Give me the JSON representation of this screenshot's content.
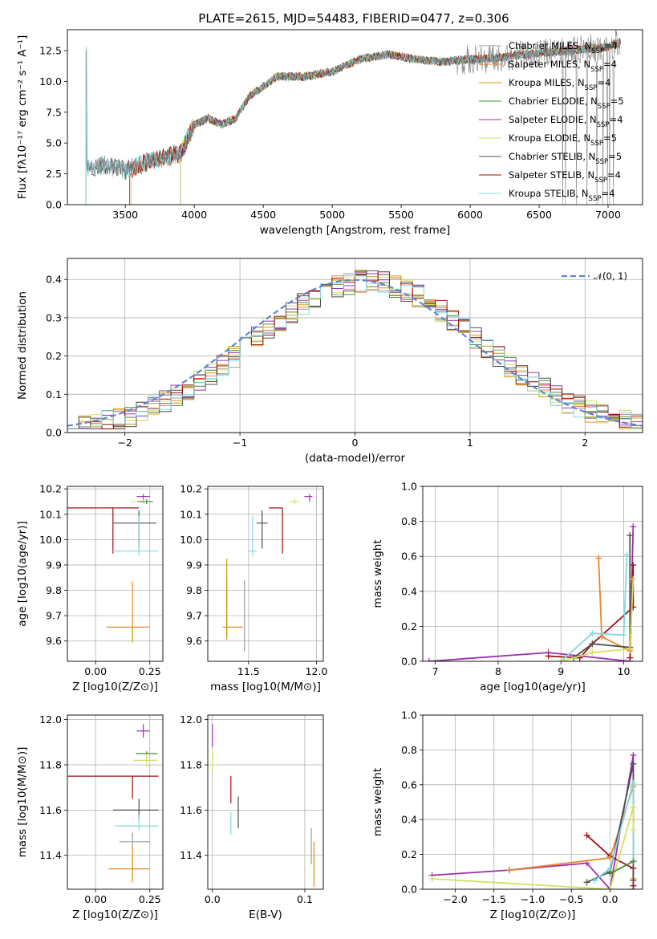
{
  "title": "PLATE=2615, MJD=54483, FIBERID=0477, z=0.306",
  "colors": {
    "chabrier_miles": "#9b9b9b",
    "salpeter_miles": "#e8872c",
    "kroupa_miles": "#c8a000",
    "chabrier_elodie": "#4a8a3a",
    "salpeter_elodie": "#9b30b0",
    "kroupa_elodie": "#d4e060",
    "chabrier_stelib": "#505050",
    "salpeter_stelib": "#a01010",
    "kroupa_stelib": "#80d8e0",
    "normal": "#5b87d4"
  },
  "legend_items": [
    {
      "label": "Chabrier MILES, N",
      "sub": "SSP",
      "tail": "=4",
      "color_key": "chabrier_miles"
    },
    {
      "label": "Salpeter MILES, N",
      "sub": "SSP",
      "tail": "=4",
      "color_key": "salpeter_miles"
    },
    {
      "label": "Kroupa MILES, N",
      "sub": "SSP",
      "tail": "=4",
      "color_key": "kroupa_miles"
    },
    {
      "label": "Chabrier ELODIE, N",
      "sub": "SSP",
      "tail": "=5",
      "color_key": "chabrier_elodie"
    },
    {
      "label": "Salpeter ELODIE, N",
      "sub": "SSP",
      "tail": "=4",
      "color_key": "salpeter_elodie"
    },
    {
      "label": "Kroupa ELODIE, N",
      "sub": "SSP",
      "tail": "=5",
      "color_key": "kroupa_elodie"
    },
    {
      "label": "Chabrier STELIB, N",
      "sub": "SSP",
      "tail": "=5",
      "color_key": "chabrier_stelib"
    },
    {
      "label": "Salpeter STELIB, N",
      "sub": "SSP",
      "tail": "=4",
      "color_key": "salpeter_stelib"
    },
    {
      "label": "Kroupa STELIB, N",
      "sub": "SSP",
      "tail": "=4",
      "color_key": "kroupa_stelib"
    }
  ],
  "chart_data": [
    {
      "id": "spectrum",
      "type": "line",
      "xlabel": "wavelength [Angstrom, rest frame]",
      "ylabel": "Flux [fλ10⁻¹⁷ erg cm⁻² s⁻¹ A⁻¹]",
      "xlim": [
        3080,
        7250
      ],
      "ylim": [
        0,
        14.2
      ],
      "xticks": [
        3500,
        4000,
        4500,
        5000,
        5500,
        6000,
        6500,
        7000
      ],
      "yticks": [
        0.0,
        2.5,
        5.0,
        7.5,
        10.0,
        12.5
      ],
      "continuum_x": [
        3220,
        3350,
        3500,
        3700,
        3900,
        4000,
        4100,
        4200,
        4300,
        4400,
        4600,
        4800,
        5000,
        5200,
        5400,
        5600,
        5800,
        6000,
        6200,
        6400,
        6600,
        6800,
        7000,
        7100
      ],
      "continuum_y": [
        3.0,
        3.2,
        2.8,
        3.6,
        4.2,
        6.5,
        7.0,
        6.5,
        7.0,
        8.8,
        10.4,
        10.4,
        10.8,
        11.8,
        12.2,
        11.8,
        11.6,
        11.8,
        11.9,
        12.2,
        12.4,
        12.6,
        12.8,
        13.3
      ]
    },
    {
      "id": "residuals",
      "type": "histogram",
      "xlabel": "(data-model)/error",
      "ylabel": "Normed distribution",
      "xlim": [
        -2.5,
        2.5
      ],
      "ylim": [
        0,
        0.455
      ],
      "xticks": [
        -2,
        -1,
        0,
        1,
        2
      ],
      "yticks": [
        0.0,
        0.1,
        0.2,
        0.3,
        0.4
      ],
      "normal_label": "𝒩(0, 1)",
      "bin_width": 0.1,
      "bin_start": -2.5
    },
    {
      "id": "age_vs_Z",
      "type": "errorbar",
      "xlabel": "Z [log10(Z/Z⊙)]",
      "ylabel": "age  [log10(age/yr)]",
      "xlim": [
        -0.13,
        0.31
      ],
      "ylim": [
        9.52,
        10.21
      ],
      "xticks": [
        0.0,
        0.25
      ],
      "yticks": [
        9.6,
        9.7,
        9.8,
        9.9,
        10.0,
        10.1,
        10.2
      ],
      "points": [
        {
          "k": "salpeter_stelib",
          "x": 0.08,
          "xerr": [
            0.21,
            0.12
          ],
          "y": 10.125,
          "yerr": [
            0.18,
            0.0
          ]
        },
        {
          "k": "salpeter_elodie",
          "x": 0.22,
          "xerr": [
            0.03,
            0.03
          ],
          "y": 10.17,
          "yerr": [
            0.02,
            0.01
          ]
        },
        {
          "k": "kroupa_elodie",
          "x": 0.22,
          "xerr": [
            0.06,
            0.04
          ],
          "y": 10.15,
          "yerr": [
            0.01,
            0.01
          ]
        },
        {
          "k": "chabrier_elodie",
          "x": 0.235,
          "xerr": [
            0.04,
            0.03
          ],
          "y": 10.15,
          "yerr": [
            0.01,
            0.01
          ]
        },
        {
          "k": "chabrier_stelib",
          "x": 0.2,
          "xerr": [
            0.12,
            0.08
          ],
          "y": 10.065,
          "yerr": [
            0.1,
            0.05
          ]
        },
        {
          "k": "kroupa_stelib",
          "x": 0.2,
          "xerr": [
            0.12,
            0.09
          ],
          "y": 9.955,
          "yerr": [
            0.02,
            0.14
          ]
        },
        {
          "k": "salpeter_miles",
          "x": 0.17,
          "xerr": [
            0.12,
            0.08
          ],
          "y": 9.655,
          "yerr": [
            0.05,
            0.18
          ]
        },
        {
          "k": "kroupa_miles",
          "x": 0.17,
          "xerr": [
            0.0,
            0.0
          ],
          "y": 9.655,
          "yerr": [
            0.06,
            0.0
          ]
        }
      ]
    },
    {
      "id": "age_vs_mass",
      "type": "errorbar",
      "xlabel": "mass [log10(M/M⊙)]",
      "ylabel": "",
      "xlim": [
        11.2,
        12.05
      ],
      "ylim": [
        9.52,
        10.21
      ],
      "xticks": [
        11.5,
        12.0
      ],
      "yticks": [
        9.6,
        9.7,
        9.8,
        9.9,
        10.0,
        10.1,
        10.2
      ],
      "points": [
        {
          "k": "salpeter_stelib",
          "x": 11.75,
          "xerr": [
            0.1,
            0.0
          ],
          "y": 10.125,
          "yerr": [
            0.18,
            0.0
          ]
        },
        {
          "k": "salpeter_elodie",
          "x": 11.95,
          "xerr": [
            0.04,
            0.02
          ],
          "y": 10.17,
          "yerr": [
            0.02,
            0.01
          ]
        },
        {
          "k": "kroupa_elodie",
          "x": 11.84,
          "xerr": [
            0.04,
            0.03
          ],
          "y": 10.15,
          "yerr": [
            0.01,
            0.01
          ]
        },
        {
          "k": "chabrier_stelib",
          "x": 11.6,
          "xerr": [
            0.04,
            0.04
          ],
          "y": 10.065,
          "yerr": [
            0.1,
            0.05
          ]
        },
        {
          "k": "kroupa_stelib",
          "x": 11.53,
          "xerr": [
            0.03,
            0.03
          ],
          "y": 9.955,
          "yerr": [
            0.02,
            0.14
          ]
        },
        {
          "k": "salpeter_miles",
          "x": 11.34,
          "xerr": [
            0.03,
            0.12
          ],
          "y": 9.655,
          "yerr": [
            0.05,
            0.18
          ]
        },
        {
          "k": "kroupa_miles",
          "x": 11.34,
          "xerr": [
            0.0,
            0.0
          ],
          "y": 9.655,
          "yerr": [
            0.04,
            0.27
          ]
        },
        {
          "k": "chabrier_miles",
          "x": 11.47,
          "xerr": [
            0.0,
            0.0
          ],
          "y": 9.7,
          "yerr": [
            0.14,
            0.14
          ]
        }
      ]
    },
    {
      "id": "massweight_vs_age",
      "type": "line",
      "xlabel": "age  [log10(age/yr)]",
      "ylabel": "mass weight",
      "xlim": [
        6.8,
        10.3
      ],
      "ylim": [
        0,
        1.0
      ],
      "xticks": [
        7,
        8,
        9,
        10
      ],
      "yticks": [
        0.0,
        0.2,
        0.4,
        0.6,
        0.8,
        1.0
      ],
      "series": [
        {
          "k": "salpeter_elodie",
          "x": [
            6.9,
            8.8,
            10.1,
            10.15
          ],
          "y": [
            0.0,
            0.05,
            0.0,
            0.77
          ]
        },
        {
          "k": "salpeter_stelib",
          "x": [
            8.8,
            9.3,
            9.5,
            10.15,
            10.15,
            10.1
          ],
          "y": [
            0.03,
            0.02,
            0.1,
            0.31,
            0.55,
            0.02
          ]
        },
        {
          "k": "salpeter_miles",
          "x": [
            9.6,
            9.65,
            10.1
          ],
          "y": [
            0.59,
            0.14,
            0.06
          ]
        },
        {
          "k": "chabrier_stelib",
          "x": [
            9.2,
            9.5,
            10.1,
            10.1
          ],
          "y": [
            0.02,
            0.1,
            0.08,
            0.72
          ]
        },
        {
          "k": "kroupa_stelib",
          "x": [
            9.0,
            9.5,
            10.0,
            10.05
          ],
          "y": [
            0.0,
            0.16,
            0.15,
            0.61
          ]
        },
        {
          "k": "kroupa_elodie",
          "x": [
            9.0,
            9.5,
            10.1,
            10.15
          ],
          "y": [
            0.0,
            0.05,
            0.07,
            0.47
          ]
        }
      ]
    },
    {
      "id": "mass_vs_Z",
      "type": "errorbar",
      "xlabel": "Z [log10(Z/Z⊙)]",
      "ylabel": "mass [log10(M/M⊙)]",
      "xlim": [
        -0.13,
        0.31
      ],
      "ylim": [
        11.25,
        12.02
      ],
      "xticks": [
        0.0,
        0.25
      ],
      "yticks": [
        11.4,
        11.6,
        11.8,
        12.0
      ],
      "points": [
        {
          "k": "salpeter_elodie",
          "x": 0.22,
          "xerr": [
            0.03,
            0.03
          ],
          "y": 11.95,
          "yerr": [
            0.03,
            0.03
          ]
        },
        {
          "k": "chabrier_elodie",
          "x": 0.235,
          "xerr": [
            0.05,
            0.05
          ],
          "y": 11.85,
          "yerr": [
            0.01,
            0.01
          ]
        },
        {
          "k": "kroupa_elodie",
          "x": 0.235,
          "xerr": [
            0.06,
            0.05
          ],
          "y": 11.82,
          "yerr": [
            0.03,
            0.03
          ]
        },
        {
          "k": "salpeter_stelib",
          "x": 0.17,
          "xerr": [
            0.3,
            0.12
          ],
          "y": 11.75,
          "yerr": [
            0.1,
            0.0
          ]
        },
        {
          "k": "chabrier_stelib",
          "x": 0.2,
          "xerr": [
            0.12,
            0.09
          ],
          "y": 11.6,
          "yerr": [
            0.04,
            0.05
          ]
        },
        {
          "k": "kroupa_stelib",
          "x": 0.2,
          "xerr": [
            0.11,
            0.09
          ],
          "y": 11.53,
          "yerr": [
            0.02,
            0.05
          ]
        },
        {
          "k": "chabrier_miles",
          "x": 0.17,
          "xerr": [
            0.06,
            0.08
          ],
          "y": 11.46,
          "yerr": [
            0.03,
            0.04
          ]
        },
        {
          "k": "salpeter_miles",
          "x": 0.17,
          "xerr": [
            0.11,
            0.08
          ],
          "y": 11.34,
          "yerr": [
            0.06,
            0.1
          ]
        },
        {
          "k": "kroupa_miles",
          "x": 0.17,
          "xerr": [
            0.0,
            0.0
          ],
          "y": 11.34,
          "yerr": [
            0.04,
            0.05
          ]
        }
      ]
    },
    {
      "id": "mass_vs_ebv",
      "type": "errorbar",
      "xlabel": "E(B-V)",
      "ylabel": "",
      "xlim": [
        -0.005,
        0.12
      ],
      "ylim": [
        11.25,
        12.02
      ],
      "xticks": [
        0.0,
        0.1
      ],
      "yticks": [
        11.4,
        11.6,
        11.8,
        12.0
      ],
      "points": [
        {
          "k": "salpeter_elodie",
          "x": 0.0,
          "xerr": [
            0,
            0
          ],
          "y": 11.93,
          "yerr": [
            0.05,
            0.05
          ]
        },
        {
          "k": "kroupa_elodie",
          "x": 0.0,
          "xerr": [
            0,
            0
          ],
          "y": 11.82,
          "yerr": [
            0.05,
            0.05
          ]
        },
        {
          "k": "salpeter_stelib",
          "x": 0.02,
          "xerr": [
            0,
            0
          ],
          "y": 11.69,
          "yerr": [
            0.06,
            0.06
          ]
        },
        {
          "k": "chabrier_stelib",
          "x": 0.028,
          "xerr": [
            0,
            0
          ],
          "y": 11.59,
          "yerr": [
            0.07,
            0.07
          ]
        },
        {
          "k": "kroupa_stelib",
          "x": 0.02,
          "xerr": [
            0,
            0
          ],
          "y": 11.54,
          "yerr": [
            0.05,
            0.05
          ]
        },
        {
          "k": "chabrier_miles",
          "x": 0.107,
          "xerr": [
            0,
            0
          ],
          "y": 11.44,
          "yerr": [
            0.08,
            0.08
          ]
        },
        {
          "k": "salpeter_miles",
          "x": 0.11,
          "xerr": [
            0,
            0
          ],
          "y": 11.36,
          "yerr": [
            0.1,
            0.1
          ]
        },
        {
          "k": "kroupa_miles",
          "x": 0.11,
          "xerr": [
            0,
            0
          ],
          "y": 11.34,
          "yerr": [
            0.05,
            0.05
          ]
        }
      ]
    },
    {
      "id": "massweight_vs_Z",
      "type": "line",
      "xlabel": "Z [log10(Z/Z⊙)]",
      "ylabel": "mass weight",
      "xlim": [
        -2.42,
        0.42
      ],
      "ylim": [
        0,
        1.0
      ],
      "xticks": [
        -2.0,
        -1.5,
        -1.0,
        -0.5,
        0.0
      ],
      "yticks": [
        0.0,
        0.2,
        0.4,
        0.6,
        0.8,
        1.0
      ],
      "series": [
        {
          "k": "salpeter_elodie",
          "x": [
            -2.3,
            -1.3,
            -0.3,
            0.0,
            0.3,
            0.3
          ],
          "y": [
            0.08,
            0.11,
            0.15,
            0.0,
            0.77,
            0.0
          ]
        },
        {
          "k": "salpeter_stelib",
          "x": [
            -0.3,
            0.0,
            0.3,
            0.3
          ],
          "y": [
            0.31,
            0.19,
            0.12,
            0.02
          ]
        },
        {
          "k": "salpeter_miles",
          "x": [
            -1.3,
            0.0,
            0.3,
            0.3
          ],
          "y": [
            0.11,
            0.18,
            0.59,
            0.06
          ]
        },
        {
          "k": "chabrier_stelib",
          "x": [
            -0.3,
            0.0,
            0.3,
            0.3
          ],
          "y": [
            0.04,
            0.1,
            0.72,
            0.05
          ]
        },
        {
          "k": "kroupa_stelib",
          "x": [
            -0.2,
            0.0,
            0.3,
            0.3
          ],
          "y": [
            0.05,
            0.12,
            0.61,
            0.16
          ]
        },
        {
          "k": "kroupa_elodie",
          "x": [
            -2.3,
            0.0,
            0.3,
            0.3
          ],
          "y": [
            0.06,
            0.0,
            0.47,
            0.34
          ]
        },
        {
          "k": "chabrier_elodie",
          "x": [
            0.0,
            0.3
          ],
          "y": [
            0.09,
            0.16
          ]
        }
      ]
    }
  ]
}
